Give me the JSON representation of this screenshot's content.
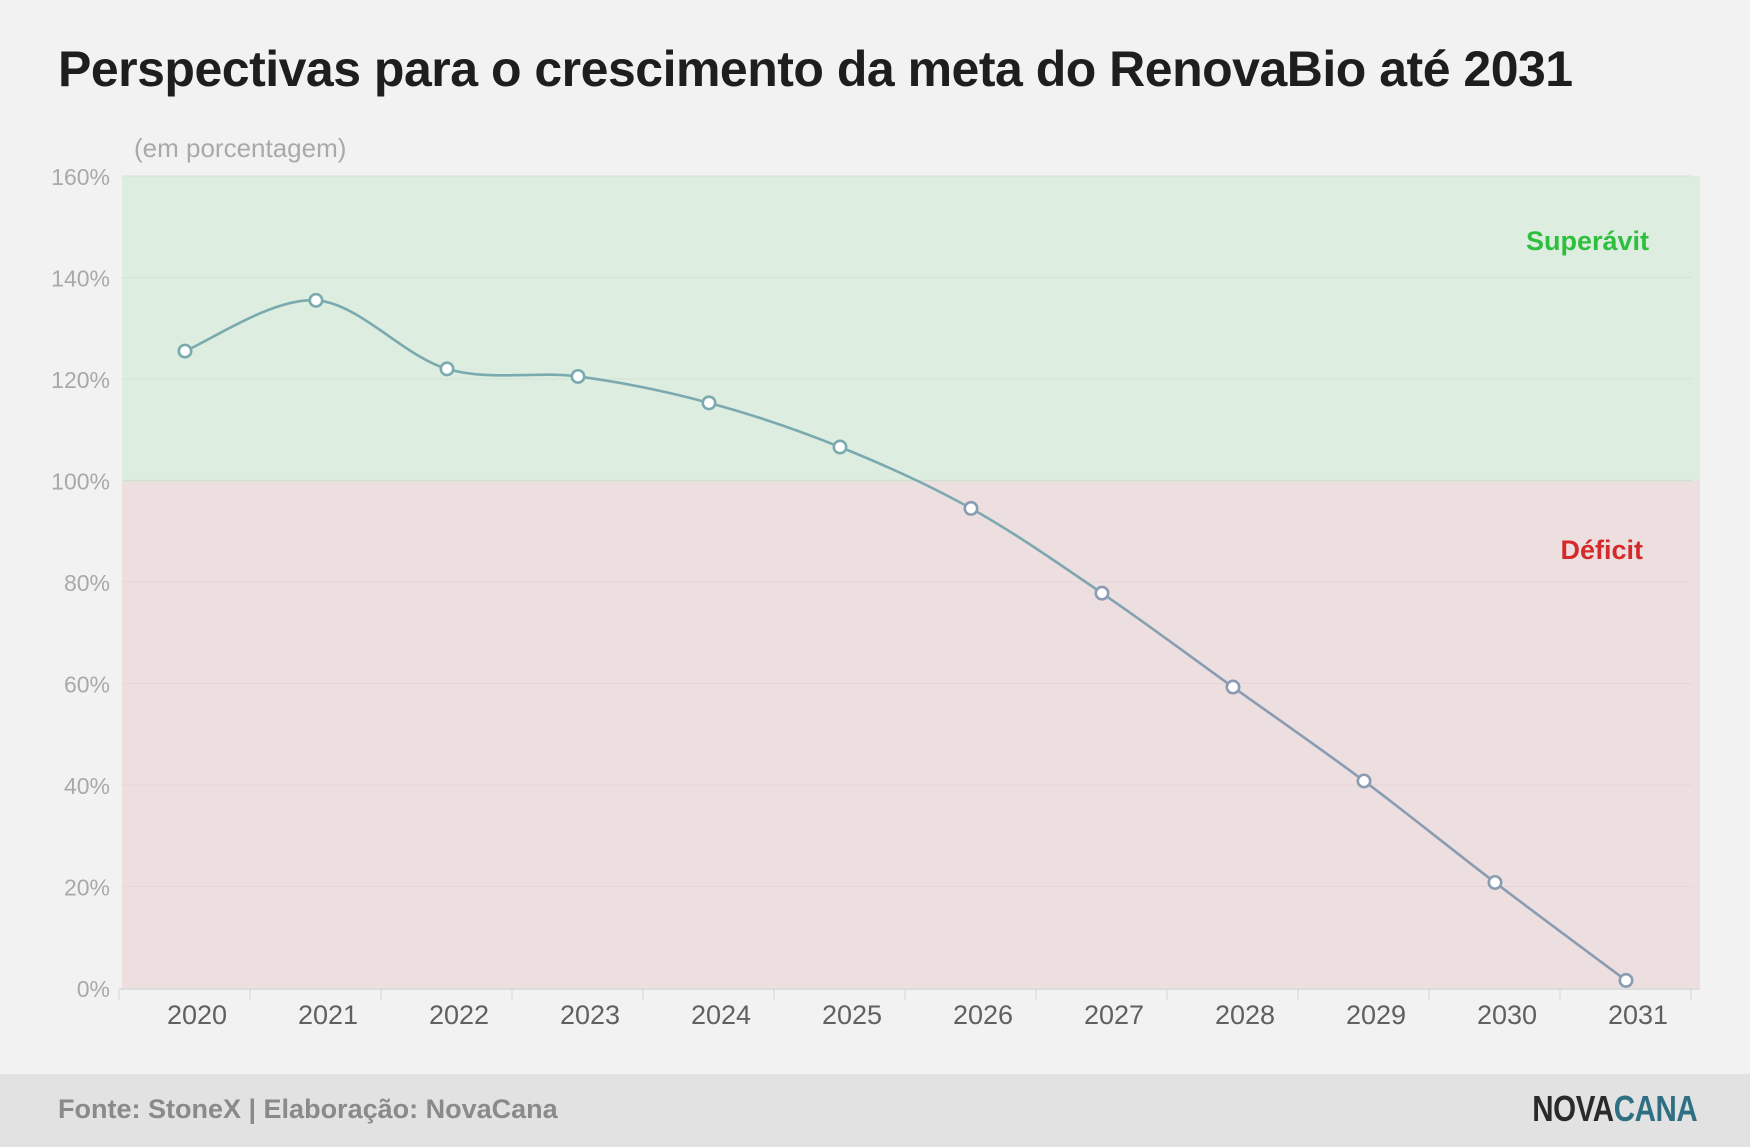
{
  "title": "Perspectivas para o crescimento da meta do RenovaBio até 2031",
  "footer": {
    "source": "Fonte: StoneX | Elaboração: NovaCana",
    "logo_part1": "NOVA",
    "logo_part2": "CANA"
  },
  "colors": {
    "surplus_band": "#ddeddf",
    "deficit_band": "#eddfe0",
    "surplus_text": "#2fbf3f",
    "deficit_text": "#d42a2a",
    "line_upper": "#7aaab0",
    "line_lower": "#8a9cb2",
    "axis_text": "#a9a9a9",
    "category_text": "#606060"
  },
  "chart_data": {
    "type": "line",
    "title": "Perspectivas para o crescimento da meta do RenovaBio até 2031",
    "unit_label": "(em porcentagem)",
    "categories": [
      "2020",
      "2021",
      "2022",
      "2023",
      "2024",
      "2025",
      "2026",
      "2027",
      "2028",
      "2029",
      "2030",
      "2031"
    ],
    "series": [
      {
        "values": [
          125.5,
          135.5,
          122,
          120.5,
          115.3,
          106.6,
          94.5,
          77.8,
          59.3,
          40.8,
          20.8,
          1.5
        ]
      }
    ],
    "ylim": [
      0,
      160
    ],
    "yticks": [
      0,
      20,
      40,
      60,
      80,
      100,
      120,
      140,
      160
    ],
    "ytick_labels": [
      "0%",
      "20%",
      "40%",
      "60%",
      "80%",
      "100%",
      "120%",
      "140%",
      "160%"
    ],
    "threshold": 100,
    "bands": [
      {
        "label": "Superávit",
        "from": 100,
        "to": 160
      },
      {
        "label": "Déficit",
        "from": 0,
        "to": 100
      }
    ],
    "grid": true,
    "legend": "none"
  }
}
